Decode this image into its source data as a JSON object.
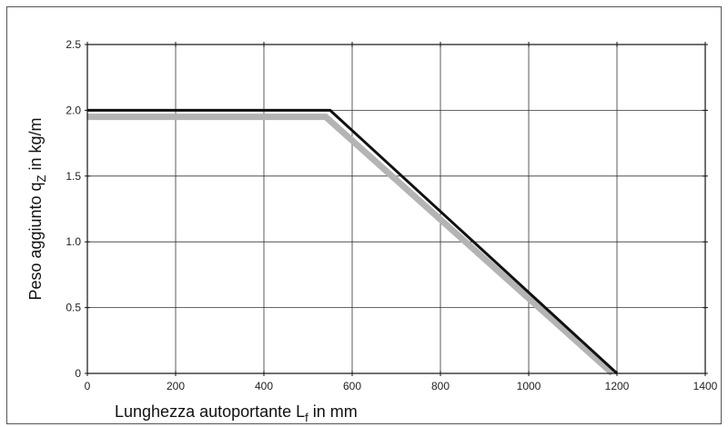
{
  "chart_data": {
    "type": "line",
    "title": "",
    "xlabel": {
      "text": "Lunghezza autoportante L",
      "subscript": "f",
      "suffix": " in mm"
    },
    "ylabel": {
      "text": "Peso aggiunto q",
      "subscript": "Z",
      "suffix": " in kg/m"
    },
    "xlim": [
      0,
      1400
    ],
    "ylim": [
      0,
      2.5
    ],
    "x_ticks": [
      0,
      200,
      400,
      600,
      800,
      1000,
      1200,
      1400
    ],
    "x_tick_labels": [
      "0",
      "200",
      "400",
      "600",
      "800",
      "1000",
      "1200",
      "1400"
    ],
    "y_ticks": [
      0,
      0.5,
      1.0,
      1.5,
      2.0,
      2.5
    ],
    "y_tick_labels": [
      "0",
      "0.5",
      "1.0",
      "1.5",
      "2.0",
      "2.5"
    ],
    "grid": true,
    "series": [
      {
        "color": "#b4b4b4",
        "points": [
          [
            0,
            1.95
          ],
          [
            540,
            1.95
          ],
          [
            1190,
            0
          ]
        ]
      },
      {
        "color": "#111111",
        "points": [
          [
            0,
            2.0
          ],
          [
            550,
            2.0
          ],
          [
            1200,
            0
          ]
        ]
      }
    ]
  }
}
